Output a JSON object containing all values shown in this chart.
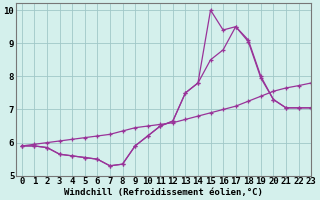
{
  "line1_x": [
    0,
    1,
    2,
    3,
    4,
    5,
    6,
    7,
    8,
    9,
    10,
    11,
    12,
    13,
    14,
    15,
    16,
    17,
    18,
    19,
    20,
    21,
    22,
    23
  ],
  "line1_y": [
    5.9,
    5.9,
    5.85,
    5.65,
    5.6,
    5.55,
    5.5,
    5.3,
    5.35,
    5.9,
    6.2,
    6.5,
    6.65,
    7.5,
    7.8,
    10.0,
    9.4,
    9.5,
    9.1,
    8.0,
    7.3,
    7.05,
    7.05,
    7.05
  ],
  "line2_x": [
    0,
    1,
    2,
    3,
    4,
    5,
    6,
    7,
    8,
    9,
    10,
    11,
    12,
    13,
    14,
    15,
    16,
    17,
    18,
    19,
    20,
    21,
    22,
    23
  ],
  "line2_y": [
    5.9,
    5.9,
    5.85,
    5.65,
    5.6,
    5.55,
    5.5,
    5.3,
    5.35,
    5.9,
    6.2,
    6.5,
    6.65,
    7.5,
    7.8,
    8.5,
    8.8,
    9.5,
    9.05,
    7.95,
    7.3,
    7.05,
    7.05,
    7.05
  ],
  "line3_x": [
    0,
    1,
    2,
    3,
    4,
    5,
    6,
    7,
    8,
    9,
    10,
    11,
    12,
    13,
    14,
    15,
    16,
    17,
    18,
    19,
    20,
    21,
    22,
    23
  ],
  "line3_y": [
    5.9,
    5.95,
    6.0,
    6.05,
    6.1,
    6.15,
    6.2,
    6.25,
    6.35,
    6.45,
    6.5,
    6.55,
    6.6,
    6.7,
    6.8,
    6.9,
    7.0,
    7.1,
    7.25,
    7.4,
    7.55,
    7.65,
    7.72,
    7.8
  ],
  "color": "#993399",
  "bg_color": "#d4f0ec",
  "grid_color": "#a0c8c8",
  "xlabel": "Windchill (Refroidissement éolien,°C)",
  "xlim": [
    -0.5,
    23
  ],
  "ylim": [
    5,
    10.2
  ],
  "xticks": [
    0,
    1,
    2,
    3,
    4,
    5,
    6,
    7,
    8,
    9,
    10,
    11,
    12,
    13,
    14,
    15,
    16,
    17,
    18,
    19,
    20,
    21,
    22,
    23
  ],
  "yticks": [
    5,
    6,
    7,
    8,
    9,
    10
  ],
  "xlabel_fontsize": 6.5,
  "tick_fontsize": 6.5,
  "linewidth": 0.9,
  "markersize": 3.5
}
